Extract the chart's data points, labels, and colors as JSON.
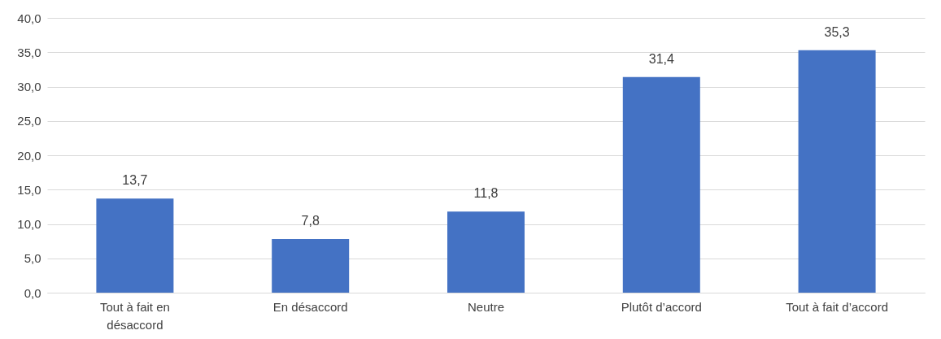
{
  "chart_data": {
    "type": "bar",
    "categories": [
      "Tout à fait en désaccord",
      "En désaccord",
      "Neutre",
      "Plutôt d’accord",
      "Tout à fait d’accord"
    ],
    "values": [
      13.7,
      7.8,
      11.8,
      31.4,
      35.3
    ],
    "value_labels": [
      "13,7",
      "7,8",
      "11,8",
      "31,4",
      "35,3"
    ],
    "color": "#4472c4",
    "ylim": [
      0,
      40
    ],
    "yticks": [
      {
        "value": 0,
        "label": "0,0"
      },
      {
        "value": 5,
        "label": "5,0"
      },
      {
        "value": 10,
        "label": "10,0"
      },
      {
        "value": 15,
        "label": "15,0"
      },
      {
        "value": 20,
        "label": "20,0"
      },
      {
        "value": 25,
        "label": "25,0"
      },
      {
        "value": 30,
        "label": "30,0"
      },
      {
        "value": 35,
        "label": "35,0"
      },
      {
        "value": 40,
        "label": "40,0"
      }
    ],
    "grid": "y"
  }
}
